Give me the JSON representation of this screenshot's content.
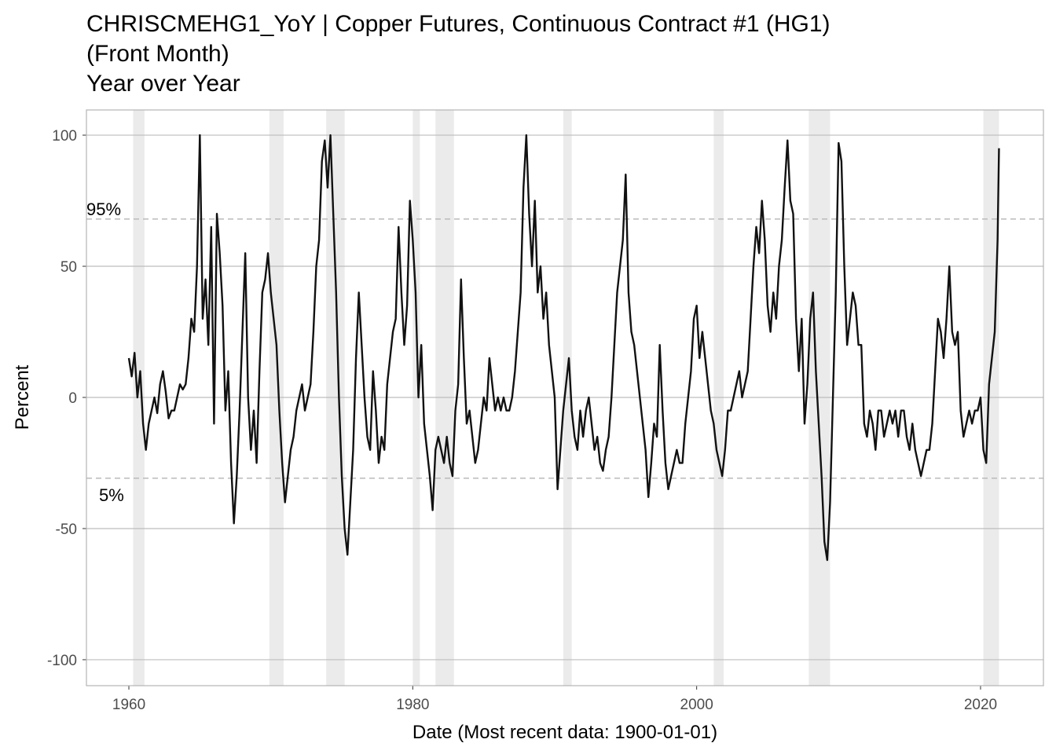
{
  "chart_data": {
    "type": "line",
    "title": [
      "CHRISCMEHG1_YoY | Copper Futures, Continuous Contract #1 (HG1)",
      "(Front Month)",
      "Year over Year"
    ],
    "xlabel": "Date (Most recent data: 1900-01-01)",
    "ylabel": "Percent",
    "xlim": [
      1957.01,
      2024.43
    ],
    "xticks": [
      1960,
      1980,
      2000,
      2020
    ],
    "ylim": [
      -109.9,
      109.6
    ],
    "yticks": [
      -100,
      -50,
      0,
      50,
      100
    ],
    "grid": true,
    "recession_color": "#ebebeb",
    "recessions": [
      [
        1960.3,
        1961.1
      ],
      [
        1969.9,
        1970.9
      ],
      [
        1973.9,
        1975.2
      ],
      [
        1980.0,
        1980.5
      ],
      [
        1981.6,
        1982.9
      ],
      [
        1990.6,
        1991.2
      ],
      [
        2001.2,
        2001.9
      ],
      [
        2007.9,
        2009.4
      ],
      [
        2020.2,
        2021.3
      ]
    ],
    "quantiles": [
      {
        "label": "95%",
        "value": 68.0
      },
      {
        "label": "5%",
        "value": -30.8
      }
    ],
    "x": [
      1960,
      1960.2,
      1960.4,
      1960.6,
      1960.8,
      1961,
      1961.2,
      1961.4,
      1961.6,
      1961.8,
      1962,
      1962.2,
      1962.4,
      1962.6,
      1962.8,
      1963,
      1963.2,
      1963.4,
      1963.6,
      1963.8,
      1964,
      1964.2,
      1964.4,
      1964.6,
      1964.8,
      1965,
      1965.2,
      1965.4,
      1965.6,
      1965.8,
      1966,
      1966.2,
      1966.4,
      1966.6,
      1966.8,
      1967,
      1967.2,
      1967.4,
      1967.6,
      1967.8,
      1968,
      1968.2,
      1968.4,
      1968.6,
      1968.8,
      1969,
      1969.2,
      1969.4,
      1969.6,
      1969.8,
      1970,
      1970.2,
      1970.4,
      1970.6,
      1970.8,
      1971,
      1971.2,
      1971.4,
      1971.6,
      1971.8,
      1972,
      1972.2,
      1972.4,
      1972.6,
      1972.8,
      1973,
      1973.2,
      1973.4,
      1973.6,
      1973.8,
      1974,
      1974.2,
      1974.4,
      1974.6,
      1974.8,
      1975,
      1975.2,
      1975.4,
      1975.6,
      1975.8,
      1976,
      1976.2,
      1976.4,
      1976.6,
      1976.8,
      1977,
      1977.2,
      1977.4,
      1977.6,
      1977.8,
      1978,
      1978.2,
      1978.4,
      1978.6,
      1978.8,
      1979,
      1979.2,
      1979.4,
      1979.6,
      1979.8,
      1980,
      1980.2,
      1980.4,
      1980.6,
      1980.8,
      1981,
      1981.2,
      1981.4,
      1981.6,
      1981.8,
      1982,
      1982.2,
      1982.4,
      1982.6,
      1982.8,
      1983,
      1983.2,
      1983.4,
      1983.6,
      1983.8,
      1984,
      1984.2,
      1984.4,
      1984.6,
      1984.8,
      1985,
      1985.2,
      1985.4,
      1985.6,
      1985.8,
      1986,
      1986.2,
      1986.4,
      1986.6,
      1986.8,
      1987,
      1987.2,
      1987.4,
      1987.6,
      1987.8,
      1988,
      1988.2,
      1988.4,
      1988.6,
      1988.8,
      1989,
      1989.2,
      1989.4,
      1989.6,
      1989.8,
      1990,
      1990.2,
      1990.4,
      1990.6,
      1990.8,
      1991,
      1991.2,
      1991.4,
      1991.6,
      1991.8,
      1992,
      1992.2,
      1992.4,
      1992.6,
      1992.8,
      1993,
      1993.2,
      1993.4,
      1993.6,
      1993.8,
      1994,
      1994.2,
      1994.4,
      1994.6,
      1994.8,
      1995,
      1995.2,
      1995.4,
      1995.6,
      1995.8,
      1996,
      1996.2,
      1996.4,
      1996.6,
      1996.8,
      1997,
      1997.2,
      1997.4,
      1997.6,
      1997.8,
      1998,
      1998.2,
      1998.4,
      1998.6,
      1998.8,
      1999,
      1999.2,
      1999.4,
      1999.6,
      1999.8,
      2000,
      2000.2,
      2000.4,
      2000.6,
      2000.8,
      2001,
      2001.2,
      2001.4,
      2001.6,
      2001.8,
      2002,
      2002.2,
      2002.4,
      2002.6,
      2002.8,
      2003,
      2003.2,
      2003.4,
      2003.6,
      2003.8,
      2004,
      2004.2,
      2004.4,
      2004.6,
      2004.8,
      2005,
      2005.2,
      2005.4,
      2005.6,
      2005.8,
      2006,
      2006.2,
      2006.4,
      2006.6,
      2006.8,
      2007,
      2007.2,
      2007.4,
      2007.6,
      2007.8,
      2008,
      2008.2,
      2008.4,
      2008.6,
      2008.8,
      2009,
      2009.2,
      2009.4,
      2009.6,
      2009.8,
      2010,
      2010.2,
      2010.4,
      2010.6,
      2010.8,
      2011,
      2011.2,
      2011.4,
      2011.6,
      2011.8,
      2012,
      2012.2,
      2012.4,
      2012.6,
      2012.8,
      2013,
      2013.2,
      2013.4,
      2013.6,
      2013.8,
      2014,
      2014.2,
      2014.4,
      2014.6,
      2014.8,
      2015,
      2015.2,
      2015.4,
      2015.6,
      2015.8,
      2016,
      2016.2,
      2016.4,
      2016.6,
      2016.8,
      2017,
      2017.2,
      2017.4,
      2017.6,
      2017.8,
      2018,
      2018.2,
      2018.4,
      2018.6,
      2018.8,
      2019,
      2019.2,
      2019.4,
      2019.6,
      2019.8,
      2020,
      2020.2,
      2020.4,
      2020.6,
      2020.8,
      2021,
      2021.2,
      2021.3
    ],
    "series": [
      {
        "name": "CHRISCMEHG1_YoY",
        "color": "#111111",
        "values": [
          15,
          8,
          17,
          0,
          10,
          -10,
          -20,
          -10,
          -5,
          0,
          -6,
          5,
          10,
          2,
          -8,
          -5,
          -5,
          0,
          5,
          3,
          5,
          15,
          30,
          25,
          50,
          100,
          30,
          45,
          20,
          65,
          -10,
          70,
          55,
          35,
          -5,
          10,
          -25,
          -48,
          -30,
          -5,
          25,
          55,
          0,
          -20,
          -5,
          -25,
          10,
          40,
          45,
          55,
          40,
          30,
          20,
          -5,
          -25,
          -40,
          -30,
          -20,
          -15,
          -5,
          0,
          5,
          -5,
          0,
          5,
          25,
          50,
          60,
          90,
          98,
          80,
          100,
          70,
          40,
          0,
          -30,
          -50,
          -60,
          -40,
          -20,
          15,
          40,
          20,
          0,
          -15,
          -20,
          10,
          -5,
          -25,
          -15,
          -20,
          5,
          15,
          25,
          30,
          65,
          40,
          20,
          35,
          75,
          60,
          40,
          0,
          20,
          -10,
          -20,
          -30,
          -43,
          -20,
          -15,
          -20,
          -25,
          -15,
          -25,
          -30,
          -5,
          5,
          45,
          15,
          -10,
          -5,
          -15,
          -25,
          -20,
          -10,
          0,
          -5,
          15,
          5,
          -5,
          0,
          -5,
          0,
          -5,
          -5,
          0,
          10,
          25,
          40,
          80,
          100,
          70,
          50,
          75,
          40,
          50,
          30,
          40,
          20,
          10,
          0,
          -35,
          -20,
          -5,
          5,
          15,
          -5,
          -15,
          -20,
          -5,
          -15,
          -5,
          0,
          -10,
          -20,
          -15,
          -25,
          -28,
          -20,
          -15,
          0,
          20,
          40,
          50,
          60,
          85,
          40,
          25,
          20,
          10,
          0,
          -10,
          -20,
          -38,
          -25,
          -10,
          -15,
          20,
          -5,
          -25,
          -35,
          -30,
          -25,
          -20,
          -25,
          -25,
          -10,
          0,
          10,
          30,
          35,
          15,
          25,
          15,
          5,
          -5,
          -10,
          -20,
          -25,
          -30,
          -20,
          -5,
          -5,
          0,
          5,
          10,
          0,
          5,
          10,
          30,
          50,
          65,
          55,
          75,
          60,
          35,
          25,
          40,
          30,
          50,
          60,
          80,
          98,
          75,
          70,
          30,
          10,
          30,
          -10,
          5,
          30,
          40,
          10,
          -10,
          -30,
          -55,
          -62,
          -40,
          0,
          40,
          97,
          90,
          50,
          20,
          30,
          40,
          35,
          20,
          20,
          -10,
          -15,
          -5,
          -10,
          -20,
          -5,
          -5,
          -15,
          -10,
          -5,
          -10,
          -5,
          -15,
          -5,
          -5,
          -15,
          -20,
          -10,
          -20,
          -25,
          -30,
          -25,
          -20,
          -20,
          -10,
          10,
          30,
          25,
          15,
          30,
          50,
          25,
          20,
          25,
          -5,
          -15,
          -10,
          -5,
          -10,
          -5,
          -5,
          0,
          -20,
          -25,
          5,
          15,
          25,
          60,
          95
        ]
      }
    ]
  }
}
